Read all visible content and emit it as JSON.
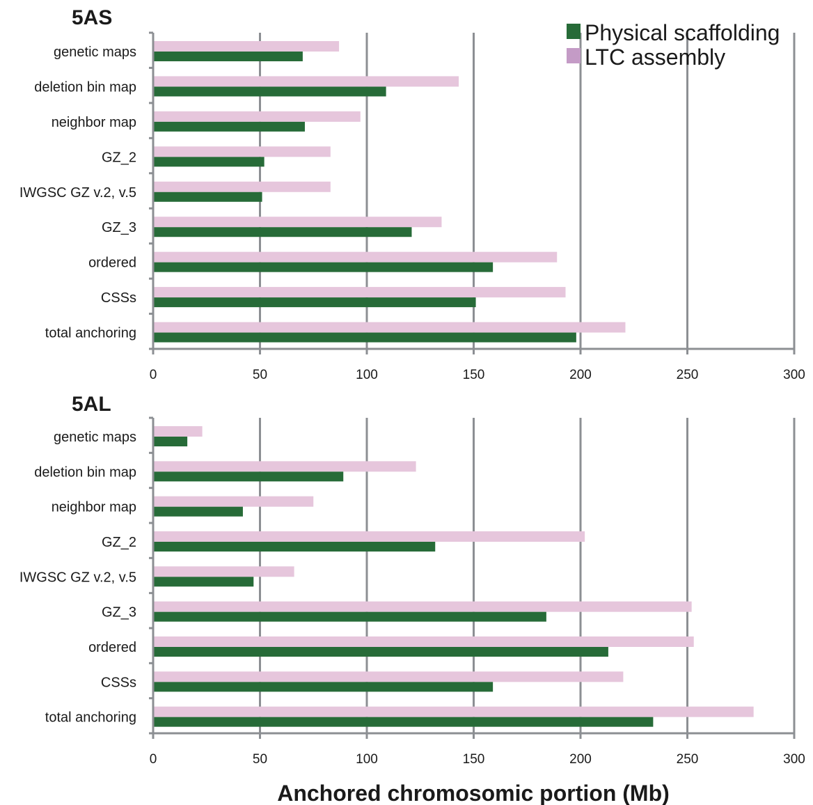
{
  "colors": {
    "physical": "#276b38",
    "ltc": "#e6c6dc",
    "ltc_legend": "#c49bc6",
    "grid": "#8c8f93",
    "text": "#1a1a1a"
  },
  "legend": {
    "items": [
      "Physical scaffolding",
      "LTC assembly"
    ],
    "placement": "top-right"
  },
  "xlabel": "Anchored chromosomic portion (Mb)",
  "chart_data": [
    {
      "type": "bar",
      "orientation": "horizontal",
      "title": "5AS",
      "categories": [
        "genetic maps",
        "deletion bin map",
        "neighbor map",
        "GZ_2",
        "IWGSC GZ v.2, v.5",
        "GZ_3",
        "ordered",
        "CSSs",
        "total anchoring"
      ],
      "series": [
        {
          "name": "Physical scaffolding",
          "values": [
            70,
            109,
            71,
            52,
            51,
            121,
            159,
            151,
            198
          ]
        },
        {
          "name": "LTC assembly",
          "values": [
            87,
            143,
            97,
            83,
            83,
            135,
            189,
            193,
            221
          ]
        }
      ],
      "xlim": [
        0,
        300
      ],
      "xticks": [
        "0",
        "50",
        "100",
        "150",
        "200",
        "250",
        "300"
      ],
      "grid": "vertical"
    },
    {
      "type": "bar",
      "orientation": "horizontal",
      "title": "5AL",
      "categories": [
        "genetic maps",
        "deletion bin map",
        "neighbor map",
        "GZ_2",
        "IWGSC GZ v.2, v.5",
        "GZ_3",
        "ordered",
        "CSSs",
        "total anchoring"
      ],
      "series": [
        {
          "name": "Physical scaffolding",
          "values": [
            16,
            89,
            42,
            132,
            47,
            184,
            213,
            159,
            234
          ]
        },
        {
          "name": "LTC assembly",
          "values": [
            23,
            123,
            75,
            202,
            66,
            252,
            253,
            220,
            281
          ]
        }
      ],
      "xlim": [
        0,
        300
      ],
      "xticks": [
        "0",
        "50",
        "100",
        "150",
        "200",
        "250",
        "300"
      ],
      "grid": "vertical"
    }
  ]
}
